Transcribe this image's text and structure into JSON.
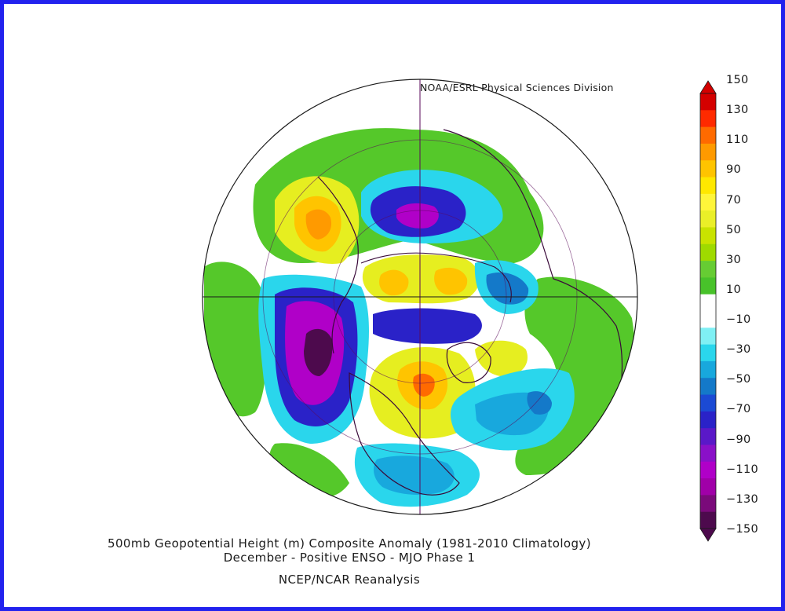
{
  "credit": "NOAA/ESRL Physical Sciences Division",
  "title_line1": "500mb Geopotential Height (m) Composite Anomaly (1981-2010 Climatology)",
  "title_line2": "December - Positive ENSO - MJO Phase 1",
  "source": "NCEP/NCAR Reanalysis",
  "colorbar": {
    "labels": [
      "150",
      "130",
      "110",
      "90",
      "70",
      "50",
      "30",
      "10",
      "-10",
      "-30",
      "-50",
      "-70",
      "-90",
      "-110",
      "-130",
      "-150"
    ],
    "colors": [
      "#d40000",
      "#ff2a00",
      "#ff6a00",
      "#ff9a00",
      "#ffc400",
      "#ffe800",
      "#fff53a",
      "#eaef28",
      "#c9e300",
      "#9fda00",
      "#66cc33",
      "#48c22a",
      "#ffffff",
      "#ffffff",
      "#7ff0f4",
      "#2ad6ec",
      "#18a8dd",
      "#1479c9",
      "#1b4ad4",
      "#2a22c8",
      "#5a18c8",
      "#8a10c8",
      "#b000c8",
      "#a000a8",
      "#7a0a7a",
      "#4d0a4d"
    ],
    "top_arrow_color": "#d40000",
    "bottom_arrow_color": "#4d0a4d"
  },
  "map_fill": {
    "positive_strong": "#ff9a00",
    "positive_mid": "#ffe800",
    "positive_weak": "#c9e300",
    "positive_min": "#55c82a",
    "negative_min": "#7ff0f4",
    "negative_weak": "#2ad6ec",
    "negative_mid": "#1b4ad4",
    "negative_strong": "#8a10c8",
    "negative_extreme": "#4d0a4d",
    "coastline": "#3a0a3a",
    "grid": "#5a0a5a"
  }
}
